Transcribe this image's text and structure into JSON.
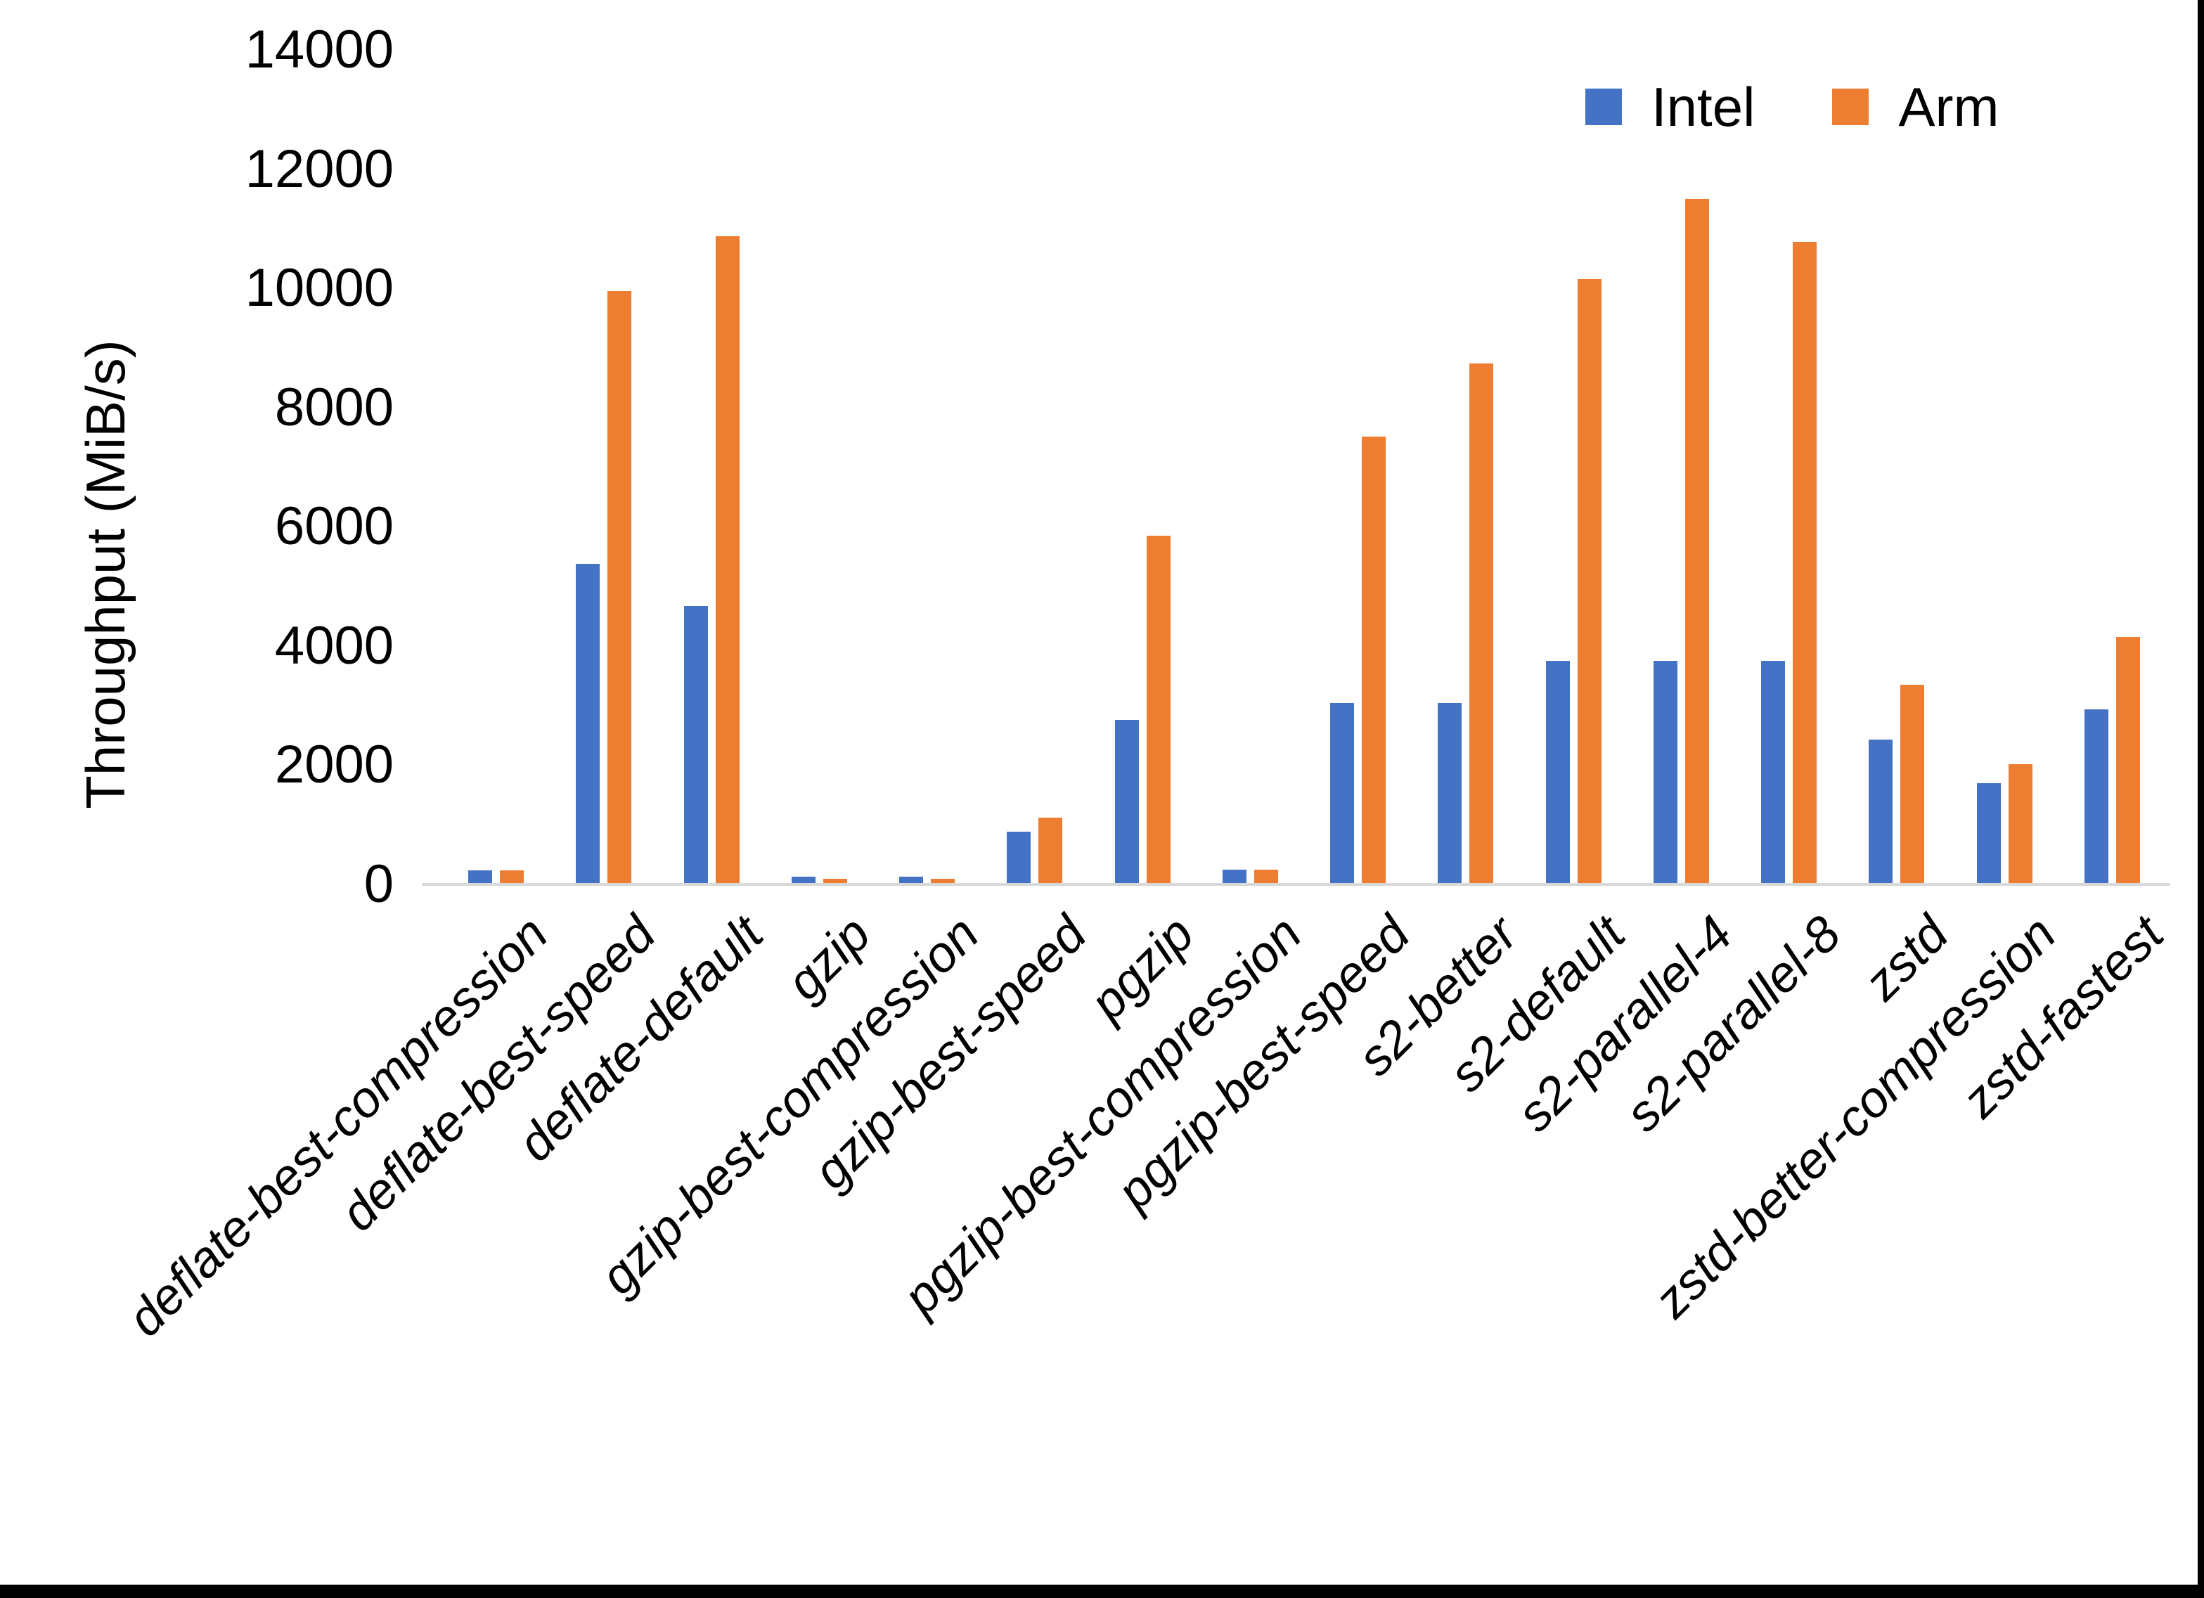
{
  "chart_data": {
    "type": "bar",
    "title": "",
    "xlabel": "",
    "ylabel": "Throughput (MiB/s)",
    "ylim": [
      0,
      14000
    ],
    "yticks": [
      0,
      2000,
      4000,
      6000,
      8000,
      10000,
      12000,
      14000
    ],
    "grid": false,
    "legend_position": "top-right",
    "categories": [
      "deflate-best-compression",
      "deflate-best-speed",
      "deflate-default",
      "gzip",
      "gzip-best-compression",
      "gzip-best-speed",
      "pgzip",
      "pgzip-best-compression",
      "pgzip-best-speed",
      "s2-better",
      "s2-default",
      "s2-parallel-4",
      "s2-parallel-8",
      "zstd",
      "zstd-better-compression",
      "zstd-fastest"
    ],
    "series": [
      {
        "name": "Intel",
        "color": "#4472C4",
        "values": [
          240,
          5380,
          4670,
          130,
          130,
          880,
          2760,
          250,
          3040,
          3040,
          3750,
          3750,
          3750,
          2430,
          1700,
          2940
        ]
      },
      {
        "name": "Arm",
        "color": "#ED7D31",
        "values": [
          240,
          9960,
          10880,
          100,
          100,
          1120,
          5850,
          250,
          7510,
          8740,
          10160,
          11500,
          10780,
          3350,
          2020,
          4150
        ]
      }
    ],
    "axis_line_color": "#D9D9D9"
  }
}
